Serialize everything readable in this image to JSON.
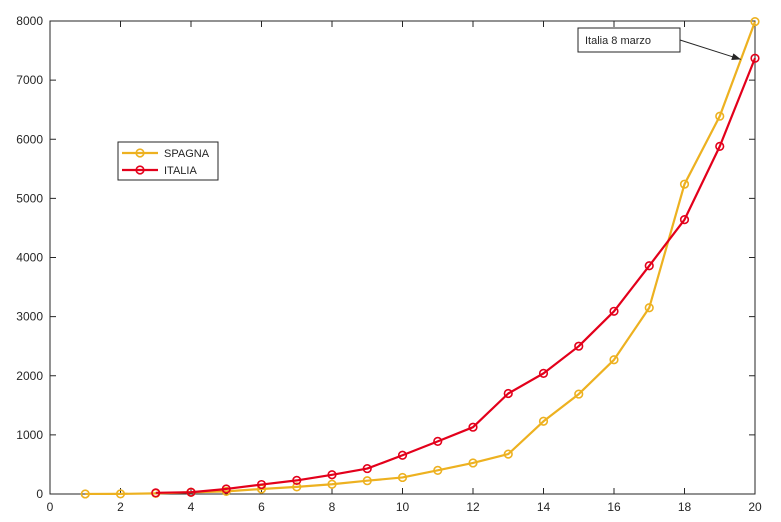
{
  "chart_data": {
    "type": "line",
    "xlim": [
      0,
      20
    ],
    "ylim": [
      0,
      8000
    ],
    "xticks": [
      0,
      2,
      4,
      6,
      8,
      10,
      12,
      14,
      16,
      18,
      20
    ],
    "yticks": [
      0,
      1000,
      2000,
      3000,
      4000,
      5000,
      6000,
      7000,
      8000
    ],
    "grid": false,
    "legend_position": "upper-left",
    "series": [
      {
        "name": "SPAGNA",
        "color": "#EDB120",
        "marker": "circle",
        "x": [
          1,
          2,
          3,
          4,
          5,
          6,
          7,
          8,
          9,
          10,
          11,
          12,
          13,
          14,
          15,
          16,
          17,
          18,
          19,
          20
        ],
        "values": [
          1,
          2,
          10,
          30,
          45,
          85,
          120,
          165,
          225,
          280,
          400,
          525,
          675,
          1230,
          1690,
          2270,
          3150,
          5240,
          6390,
          7990
        ]
      },
      {
        "name": "ITALIA",
        "color": "#E3001B",
        "marker": "circle",
        "x": [
          3,
          4,
          5,
          6,
          7,
          8,
          9,
          10,
          11,
          12,
          13,
          14,
          15,
          16,
          17,
          18,
          19,
          20
        ],
        "values": [
          20,
          30,
          85,
          160,
          230,
          325,
          430,
          655,
          890,
          1130,
          1700,
          2040,
          2500,
          3090,
          3860,
          4640,
          5880,
          7370
        ]
      }
    ],
    "annotations": [
      {
        "text": "Italia 8 marzo",
        "arrow_to": {
          "x": 19.6,
          "y": 7350
        }
      }
    ]
  }
}
